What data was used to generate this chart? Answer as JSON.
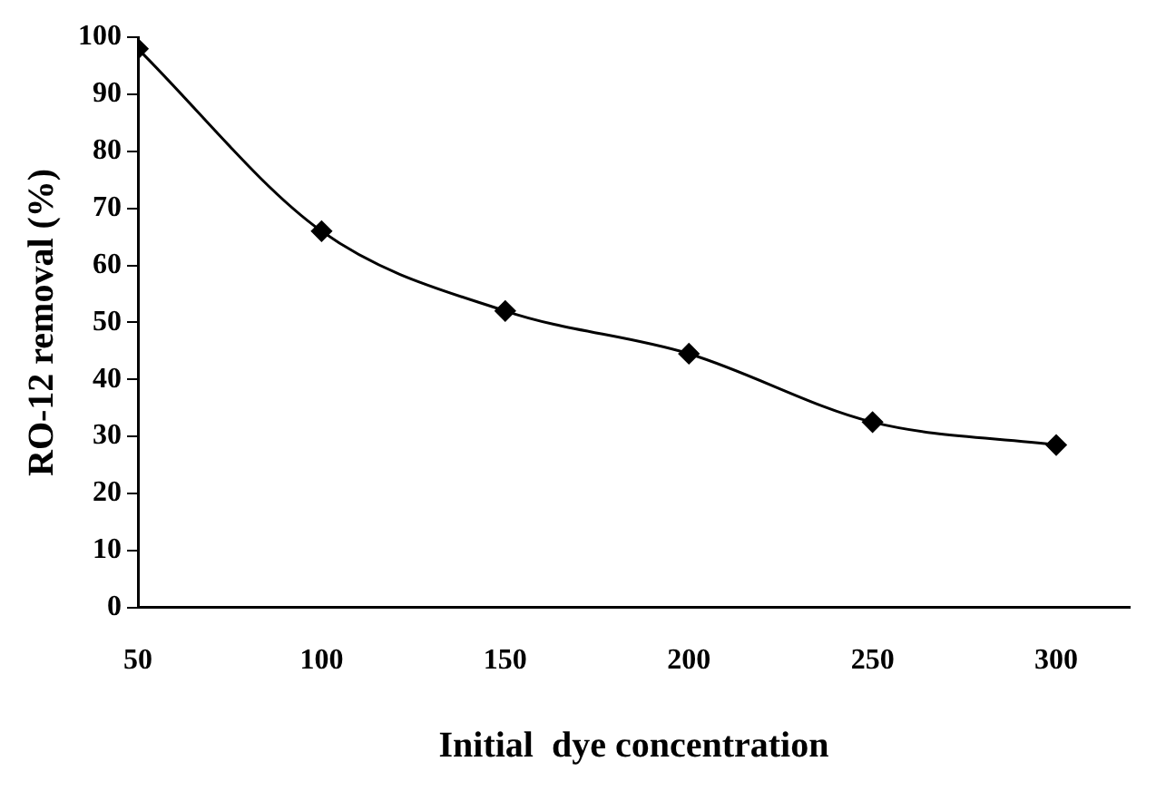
{
  "chart_data": {
    "type": "line",
    "xlabel": "Initial  dye concentration",
    "ylabel": "RO-12 removal (%)",
    "x": [
      50,
      100,
      150,
      200,
      250,
      300
    ],
    "series": [
      {
        "color": "#000000",
        "values": [
          98,
          66,
          52,
          44.5,
          32.5,
          28.5
        ]
      }
    ],
    "xlim": [
      50,
      320
    ],
    "xticks": [
      50,
      100,
      150,
      200,
      250,
      300
    ],
    "ylim": [
      0,
      100
    ],
    "yticks": [
      0,
      10,
      20,
      30,
      40,
      50,
      60,
      70,
      80,
      90,
      100
    ],
    "grid": false,
    "legend": false,
    "marker": "diamond",
    "line_style": "solid"
  }
}
